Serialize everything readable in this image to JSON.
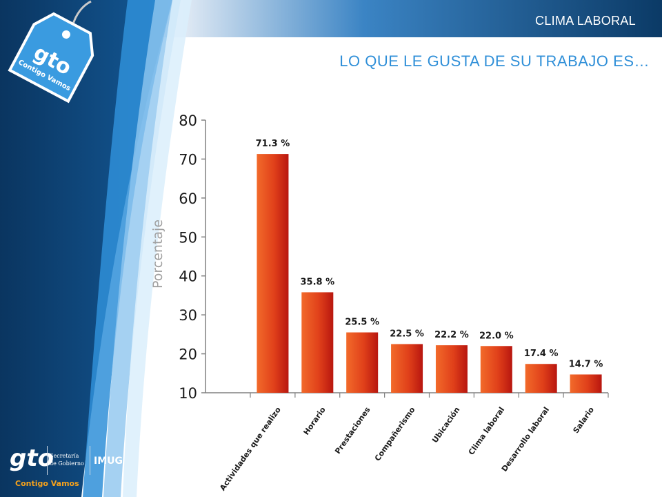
{
  "header": {
    "section_title": "CLIMA LABORAL",
    "slide_title": "LO QUE LE GUSTA DE SU TRABAJO ES…"
  },
  "branding": {
    "tag_logo": "gto",
    "tag_slogan": "Contigo Vamos",
    "footer_logo": "gto",
    "footer_dept_line1": "Secretaría",
    "footer_dept_line2": "de Gobierno",
    "footer_imug": "IMUG",
    "footer_slogan": "Contigo Vamos"
  },
  "colors": {
    "accent_blue": "#2f8fd8",
    "dark_blue": "#0b3a66",
    "bar_orange": "#e8501e",
    "bar_red": "#b8160f"
  },
  "chart_data": {
    "type": "bar",
    "title": "LO QUE LE GUSTA DE SU TRABAJO ES…",
    "xlabel": "",
    "ylabel": "Porcentaje",
    "ylim": [
      10,
      80
    ],
    "yticks": [
      10,
      20,
      30,
      40,
      50,
      60,
      70,
      80
    ],
    "grid": false,
    "categories": [
      "Actividades que realizo",
      "Horario",
      "Prestaciones",
      "Compañerismo",
      "Ubicación",
      "Clima laboral",
      "Desarrollo laboral",
      "Salario"
    ],
    "values": [
      71.3,
      35.8,
      25.5,
      22.5,
      22.2,
      22.0,
      17.4,
      14.7
    ],
    "value_labels": [
      "71.3 %",
      "35.8 %",
      "25.5 %",
      "22.5 %",
      "22.2 %",
      "22.0 %",
      "17.4 %",
      "14.7 %"
    ]
  }
}
